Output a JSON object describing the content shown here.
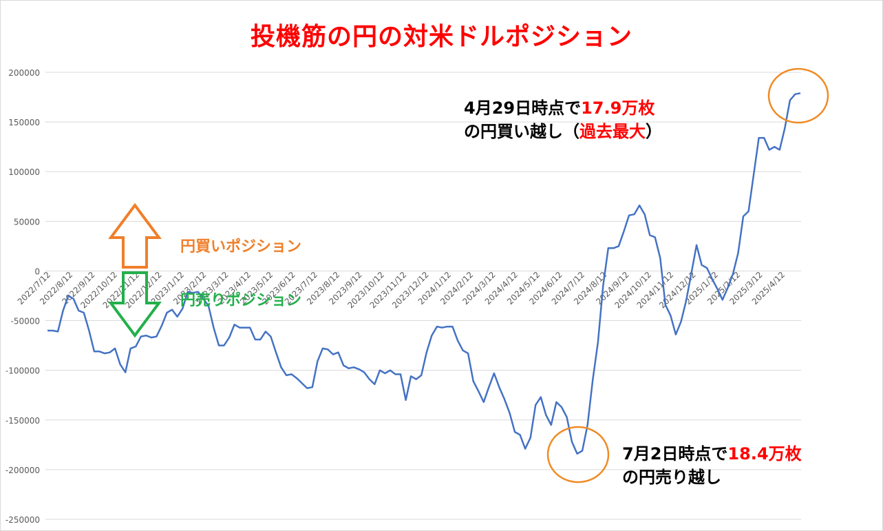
{
  "chart_data": {
    "type": "line",
    "title": "投機筋の円の対米ドルポジション",
    "ylim": [
      -250000,
      200000
    ],
    "y_ticks": [
      200000,
      150000,
      100000,
      50000,
      0,
      -50000,
      -100000,
      -150000,
      -200000,
      -250000
    ],
    "y_tick_labels": [
      "200000",
      "150000",
      "100000",
      "50000",
      "0",
      "-50000",
      "-100000",
      "-150000",
      "-200000",
      "-250000"
    ],
    "x_tick_labels": [
      "2022/7/12",
      "2022/8/12",
      "2022/9/12",
      "2022/10/12",
      "2022/11/12",
      "2022/12/12",
      "2023/1/12",
      "2023/2/12",
      "2023/3/12",
      "2023/4/12",
      "2023/5/12",
      "2023/6/12",
      "2023/7/12",
      "2023/8/12",
      "2023/9/12",
      "2023/10/12",
      "2023/11/12",
      "2023/12/12",
      "2024/1/12",
      "2024/2/12",
      "2024/3/12",
      "2024/4/12",
      "2024/5/12",
      "2024/6/12",
      "2024/7/12",
      "2024/8/12",
      "2024/9/12",
      "2024/10/12",
      "2024/11/12",
      "2024/12/12",
      "2025/1/12",
      "2025/2/12",
      "2025/3/12",
      "2025/4/12"
    ],
    "grid": true,
    "legend": "none",
    "series": [
      {
        "color": "#4472c4",
        "values": [
          -60000,
          -60000,
          -61000,
          -40000,
          -25000,
          -28000,
          -40000,
          -42000,
          -60000,
          -81000,
          -81000,
          -83000,
          -82000,
          -78000,
          -94000,
          -102000,
          -78000,
          -76000,
          -66000,
          -65000,
          -67000,
          -66000,
          -55000,
          -42000,
          -39000,
          -46000,
          -38000,
          -21000,
          -22000,
          -21000,
          -28000,
          -35000,
          -57000,
          -75000,
          -75000,
          -67000,
          -54000,
          -57000,
          -57000,
          -57000,
          -69000,
          -69000,
          -61000,
          -66000,
          -82000,
          -97000,
          -105000,
          -104000,
          -108000,
          -113000,
          -118000,
          -117000,
          -91000,
          -78000,
          -79000,
          -84000,
          -82000,
          -95000,
          -98000,
          -97000,
          -99000,
          -102000,
          -109000,
          -114000,
          -100000,
          -103000,
          -100000,
          -104000,
          -104000,
          -130000,
          -106000,
          -109000,
          -105000,
          -82000,
          -65000,
          -56000,
          -57000,
          -56000,
          -56000,
          -70000,
          -80000,
          -83000,
          -111000,
          -121000,
          -132000,
          -117000,
          -103000,
          -117000,
          -129000,
          -143000,
          -162000,
          -165000,
          -179000,
          -168000,
          -135000,
          -127000,
          -145000,
          -155000,
          -132000,
          -137000,
          -147000,
          -172000,
          -184000,
          -181000,
          -155000,
          -110000,
          -72000,
          -15000,
          23000,
          23000,
          25000,
          40000,
          56000,
          57000,
          66000,
          57000,
          36000,
          34000,
          13000,
          -34000,
          -45000,
          -64000,
          -51000,
          -30000,
          -2000,
          26000,
          6000,
          3000,
          -8000,
          -18000,
          -29000,
          -17000,
          -3000,
          18000,
          55000,
          60000,
          97000,
          134000,
          134000,
          122000,
          125000,
          122000,
          144000,
          172000,
          178000,
          179000
        ]
      }
    ]
  },
  "arrows": {
    "long_label": "円買いポジション",
    "long_color": "#f07f2a",
    "short_label": "円売りポジション",
    "short_color": "#22b04b"
  },
  "annotations": {
    "peak": {
      "line1_pre": "4月29日時点で",
      "line1_value": "17.9万枚",
      "line2_pre": "の円買い越し（",
      "line2_value": "過去最大",
      "line2_post": "）"
    },
    "trough": {
      "line1_pre": "7月2日時点で",
      "line1_value": "18.4万枚",
      "line2": "の円売り越し"
    },
    "circle_color": "#f08a24",
    "highlight_color": "#ff0000"
  }
}
